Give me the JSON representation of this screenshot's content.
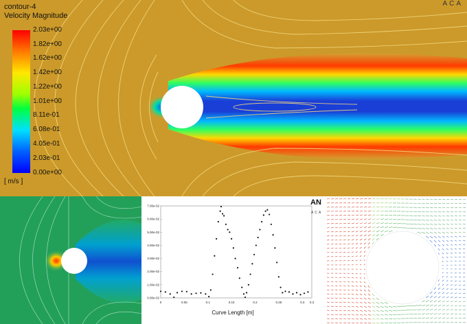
{
  "top": {
    "title": "contour-4",
    "subtitle": "Velocity Magnitude",
    "units": "[ m/s ]",
    "logo": "ACA",
    "colorbar_labels": [
      "2.03e+00",
      "1.82e+00",
      "1.62e+00",
      "1.42e+00",
      "1.22e+00",
      "1.01e+00",
      "8.11e-01",
      "6.08e-01",
      "4.05e-01",
      "2.03e-01",
      "0.00e+00"
    ]
  },
  "plot": {
    "logo": "AN",
    "logo_sub": "ACA"
  },
  "chart_data": {
    "type": "scatter",
    "xlabel": "Curve Length [m]",
    "ylabel": "",
    "xlim": [
      0,
      0.32
    ],
    "ylim": [
      0,
      0.07
    ],
    "x_ticks": [
      "0",
      "0.05",
      "0.1",
      "0.15",
      "0.2",
      "0.25",
      "0.3",
      "0.3"
    ],
    "y_ticks": [
      "0.00e-02",
      "1.00e-02",
      "2.00e-02",
      "3.00e-02",
      "4.00e-02",
      "5.00e-02",
      "6.00e-02",
      "7.00e-02"
    ],
    "series": [
      {
        "points": [
          [
            0.0,
            0.005
          ],
          [
            0.01,
            0.0045
          ],
          [
            0.02,
            0.003
          ],
          [
            0.028,
            0.0005
          ],
          [
            0.035,
            0.004
          ],
          [
            0.045,
            0.005
          ],
          [
            0.055,
            0.0048
          ],
          [
            0.065,
            0.003
          ],
          [
            0.075,
            0.0035
          ],
          [
            0.085,
            0.0038
          ],
          [
            0.095,
            0.003
          ],
          [
            0.102,
            0.001
          ],
          [
            0.106,
            0.006
          ],
          [
            0.11,
            0.018
          ],
          [
            0.114,
            0.032
          ],
          [
            0.118,
            0.045
          ],
          [
            0.122,
            0.058
          ],
          [
            0.126,
            0.066
          ],
          [
            0.128,
            0.0695
          ],
          [
            0.131,
            0.064
          ],
          [
            0.134,
            0.0625
          ],
          [
            0.138,
            0.056
          ],
          [
            0.142,
            0.052
          ],
          [
            0.146,
            0.05
          ],
          [
            0.15,
            0.045
          ],
          [
            0.154,
            0.038
          ],
          [
            0.158,
            0.03
          ],
          [
            0.163,
            0.023
          ],
          [
            0.167,
            0.015
          ],
          [
            0.172,
            0.008
          ],
          [
            0.176,
            0.003
          ],
          [
            0.179,
            0.0005
          ],
          [
            0.182,
            0.004
          ],
          [
            0.186,
            0.01
          ],
          [
            0.19,
            0.018
          ],
          [
            0.194,
            0.026
          ],
          [
            0.198,
            0.033
          ],
          [
            0.202,
            0.04
          ],
          [
            0.206,
            0.046
          ],
          [
            0.21,
            0.052
          ],
          [
            0.214,
            0.058
          ],
          [
            0.218,
            0.063
          ],
          [
            0.222,
            0.066
          ],
          [
            0.226,
            0.067
          ],
          [
            0.23,
            0.0635
          ],
          [
            0.234,
            0.056
          ],
          [
            0.238,
            0.048
          ],
          [
            0.242,
            0.038
          ],
          [
            0.246,
            0.027
          ],
          [
            0.25,
            0.016
          ],
          [
            0.254,
            0.008
          ],
          [
            0.258,
            0.004
          ],
          [
            0.264,
            0.005
          ],
          [
            0.272,
            0.0045
          ],
          [
            0.28,
            0.003
          ],
          [
            0.288,
            0.004
          ],
          [
            0.296,
            0.0025
          ],
          [
            0.304,
            0.0035
          ],
          [
            0.312,
            0.0045
          ]
        ]
      }
    ],
    "grid": false
  },
  "colors": {
    "freestream": "#cc9a2a",
    "wake": "#1a3fd6",
    "contour_line": "#f1d880",
    "cylinder": "#ffffff"
  }
}
